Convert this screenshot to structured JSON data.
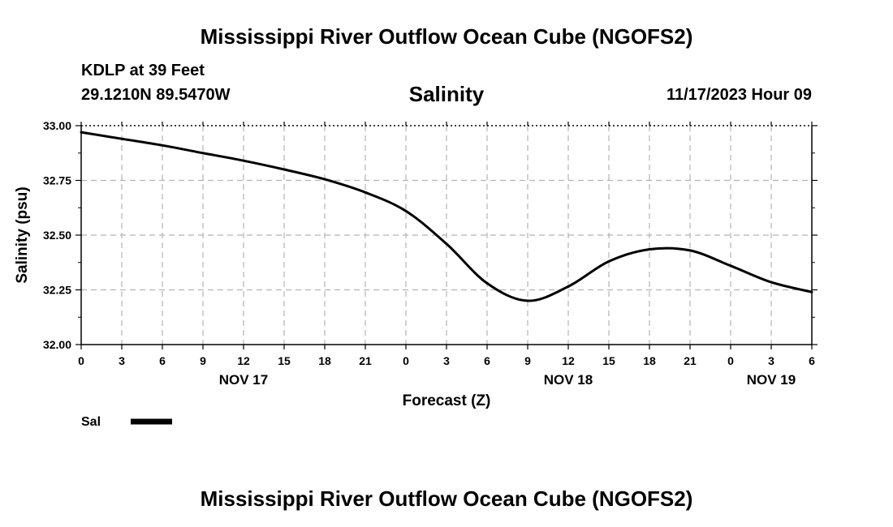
{
  "header": {
    "title": "Mississippi River Outflow Ocean Cube (NGOFS2)",
    "station": "KDLP at 39 Feet",
    "coordinates": "29.1210N  89.5470W",
    "datetime": "11/17/2023 Hour 09"
  },
  "footer": {
    "title": "Mississippi River Outflow Ocean Cube (NGOFS2)"
  },
  "chart_data": {
    "type": "line",
    "title": "Salinity",
    "xlabel": "Forecast (Z)",
    "ylabel": "Salinity (psu)",
    "ylim": [
      32.0,
      33.0
    ],
    "xlim": [
      0,
      54
    ],
    "y_ticks": [
      "32.00",
      "32.25",
      "32.50",
      "32.75",
      "33.00"
    ],
    "y_tick_values": [
      32.0,
      32.25,
      32.5,
      32.75,
      33.0
    ],
    "x_ticks": [
      "0",
      "3",
      "6",
      "9",
      "12",
      "15",
      "18",
      "21",
      "0",
      "3",
      "6",
      "9",
      "12",
      "15",
      "18",
      "21",
      "0",
      "3",
      "6"
    ],
    "day_labels": [
      {
        "label": "NOV 17",
        "hour": 12
      },
      {
        "label": "NOV 18",
        "hour": 36
      },
      {
        "label": "NOV 19",
        "hour": 51
      }
    ],
    "grid": true,
    "legend": {
      "position": "bottom-left",
      "label": "Sal"
    },
    "series": [
      {
        "name": "Sal",
        "x": [
          0,
          3,
          6,
          9,
          12,
          15,
          18,
          21,
          24,
          27,
          30,
          33,
          36,
          39,
          42,
          45,
          48,
          51,
          54
        ],
        "values": [
          32.97,
          32.94,
          32.91,
          32.875,
          32.84,
          32.8,
          32.755,
          32.695,
          32.61,
          32.46,
          32.28,
          32.2,
          32.265,
          32.38,
          32.435,
          32.43,
          32.36,
          32.285,
          32.24
        ]
      }
    ]
  }
}
